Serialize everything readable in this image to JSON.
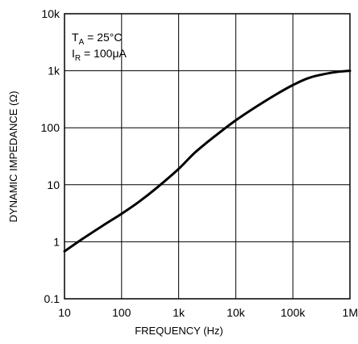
{
  "chart_data": {
    "type": "line",
    "xlabel": "FREQUENCY (Hz)",
    "ylabel": "DYNAMIC IMPEDANCE (Ω)",
    "xscale": "log",
    "yscale": "log",
    "xlim": [
      10,
      1000000
    ],
    "ylim": [
      0.1,
      10000
    ],
    "grid": true,
    "x_ticks": [
      {
        "value": 10,
        "label": "10"
      },
      {
        "value": 100,
        "label": "100"
      },
      {
        "value": 1000,
        "label": "1k"
      },
      {
        "value": 10000,
        "label": "10k"
      },
      {
        "value": 100000,
        "label": "100k"
      },
      {
        "value": 1000000,
        "label": "1M"
      }
    ],
    "y_ticks": [
      {
        "value": 0.1,
        "label": "0.1"
      },
      {
        "value": 1,
        "label": "1"
      },
      {
        "value": 10,
        "label": "10"
      },
      {
        "value": 100,
        "label": "100"
      },
      {
        "value": 1000,
        "label": "1k"
      },
      {
        "value": 10000,
        "label": "10k"
      }
    ],
    "annotations": {
      "ta": {
        "main": "T",
        "sub": "A",
        "rest": " = 25°C"
      },
      "ir": {
        "main": "I",
        "sub": "R",
        "rest": " = 100μA"
      }
    },
    "series": [
      {
        "x": [
          10,
          20,
          50,
          100,
          200,
          400,
          1000,
          2000,
          5000,
          10000,
          20000,
          50000,
          100000,
          200000,
          500000,
          1000000
        ],
        "y": [
          0.68,
          1.1,
          2.0,
          3.1,
          5.0,
          8.6,
          19,
          38,
          80,
          135,
          215,
          380,
          560,
          760,
          930,
          1000
        ]
      }
    ]
  }
}
